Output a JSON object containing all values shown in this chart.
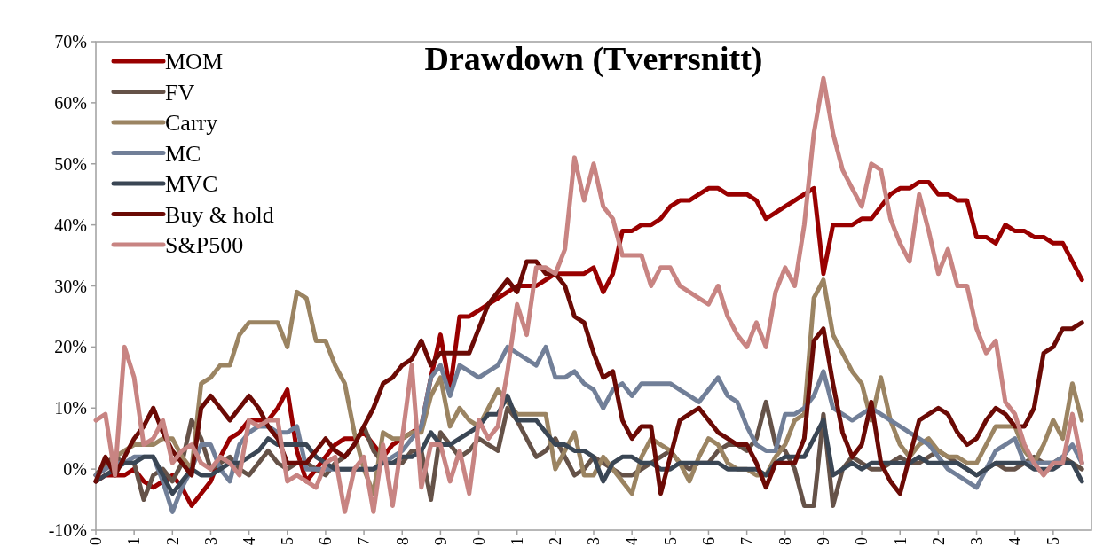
{
  "chart_data": {
    "type": "line",
    "title": "Drawdown (Tverrsnitt)",
    "legend": "top left",
    "grid": false,
    "line_style": "solid",
    "categories": [
      "0",
      null,
      null,
      null,
      "1",
      null,
      null,
      null,
      "2",
      null,
      null,
      null,
      "3",
      null,
      null,
      null,
      "4",
      null,
      null,
      null,
      "5",
      null,
      null,
      null,
      "6",
      null,
      null,
      null,
      "7",
      null,
      null,
      null,
      "8",
      null,
      null,
      null,
      "9",
      null,
      null,
      null,
      "0",
      null,
      null,
      null,
      "1",
      null,
      null,
      null,
      "2",
      null,
      null,
      null,
      "3",
      null,
      null,
      null,
      "4",
      null,
      null,
      null,
      "5",
      null,
      null,
      null,
      "6",
      null,
      null,
      null,
      "7",
      null,
      null,
      null,
      "8",
      null,
      null,
      null,
      "9",
      null,
      null,
      null,
      "0",
      null,
      null,
      null,
      "1",
      null,
      null,
      null,
      "2",
      null,
      null,
      null,
      "3",
      null,
      null,
      null,
      "4",
      null,
      null,
      null,
      "5",
      null,
      null,
      null
    ],
    "ylim": [
      -10,
      70
    ],
    "yticks": [
      {
        "value": -10,
        "label": "-10%"
      },
      {
        "value": 0,
        "label": "0%"
      },
      {
        "value": 10,
        "label": "10%"
      },
      {
        "value": 20,
        "label": "20%"
      },
      {
        "value": 30,
        "label": "30%"
      },
      {
        "value": 40,
        "label": "40%"
      },
      {
        "value": 50,
        "label": "50%"
      },
      {
        "value": 60,
        "label": "60%"
      },
      {
        "value": 70,
        "label": "70%"
      }
    ],
    "series": [
      {
        "name": "MOM",
        "color": "#990000",
        "values": [
          -2,
          -1,
          -1,
          -1,
          0,
          -2,
          -3,
          -2,
          -1,
          -3,
          -6,
          -4,
          -2,
          2,
          5,
          6,
          8,
          8,
          8,
          10,
          13,
          3,
          -2,
          0,
          2,
          4,
          5,
          5,
          6,
          4,
          2,
          4,
          5,
          6,
          7,
          15,
          22,
          13,
          25,
          25,
          26,
          27,
          28,
          29,
          30,
          30,
          30,
          31,
          32,
          32,
          32,
          32,
          33,
          29,
          32,
          39,
          39,
          40,
          40,
          41,
          43,
          44,
          44,
          45,
          46,
          46,
          45,
          45,
          45,
          44,
          41,
          42,
          43,
          44,
          45,
          46,
          32,
          40,
          40,
          40,
          41,
          41,
          43,
          45,
          46,
          46,
          47,
          47,
          45,
          45,
          44,
          44,
          38,
          38,
          37,
          40,
          39,
          39,
          38,
          38,
          37,
          37,
          34,
          31
        ]
      },
      {
        "name": "FV",
        "color": "#655248",
        "values": [
          -1,
          1,
          2,
          1,
          1,
          -5,
          -1,
          0,
          -2,
          1,
          8,
          5,
          0,
          1,
          2,
          0,
          -1,
          1,
          3,
          1,
          0,
          1,
          1,
          0,
          -1,
          1,
          2,
          4,
          7,
          3,
          1,
          1,
          1,
          3,
          3,
          -5,
          6,
          4,
          2,
          3,
          5,
          4,
          3,
          10,
          8,
          5,
          2,
          3,
          5,
          2,
          -1,
          0,
          2,
          1,
          0,
          -1,
          -1,
          0,
          1,
          2,
          3,
          1,
          0,
          1,
          1,
          3,
          4,
          4,
          3,
          5,
          11,
          4,
          3,
          0,
          -6,
          -6,
          9,
          -6,
          0,
          2,
          1,
          0,
          0,
          1,
          2,
          1,
          1,
          2,
          3,
          2,
          1,
          0,
          -1,
          0,
          1,
          0,
          0,
          1,
          2,
          1,
          1,
          2,
          1,
          0
        ]
      },
      {
        "name": "Carry",
        "color": "#9b8462",
        "values": [
          -1,
          0,
          2,
          3,
          4,
          4,
          4,
          5,
          5,
          2,
          0,
          14,
          15,
          17,
          17,
          22,
          24,
          24,
          24,
          24,
          20,
          29,
          28,
          21,
          21,
          17,
          14,
          6,
          0,
          -4,
          6,
          5,
          5,
          6,
          6,
          12,
          15,
          7,
          10,
          8,
          7,
          10,
          13,
          11,
          9,
          9,
          9,
          9,
          0,
          3,
          6,
          -1,
          -1,
          2,
          0,
          -2,
          -4,
          2,
          5,
          4,
          3,
          1,
          -2,
          2,
          5,
          4,
          1,
          0,
          0,
          -1,
          -1,
          2,
          4,
          8,
          9,
          28,
          31,
          22,
          19,
          16,
          14,
          8,
          15,
          8,
          4,
          2,
          4,
          5,
          3,
          2,
          2,
          1,
          1,
          4,
          7,
          7,
          7,
          3,
          1,
          4,
          8,
          5,
          14,
          8
        ]
      },
      {
        "name": "MC",
        "color": "#717f98",
        "values": [
          -1,
          0,
          1,
          1,
          2,
          2,
          2,
          -2,
          -7,
          -3,
          0,
          4,
          4,
          0,
          -2,
          4,
          6,
          7,
          7,
          6,
          6,
          7,
          0,
          0,
          0,
          0,
          0,
          0,
          0,
          0,
          1,
          2,
          3,
          5,
          7,
          15,
          17,
          12,
          17,
          16,
          15,
          16,
          17,
          20,
          19,
          18,
          17,
          20,
          15,
          15,
          16,
          14,
          13,
          10,
          13,
          14,
          12,
          14,
          14,
          14,
          14,
          13,
          12,
          11,
          13,
          15,
          12,
          11,
          7,
          4,
          3,
          3,
          9,
          9,
          10,
          12,
          16,
          10,
          9,
          8,
          9,
          10,
          9,
          8,
          7,
          6,
          5,
          4,
          2,
          0,
          -1,
          -2,
          -3,
          0,
          3,
          4,
          5,
          1,
          1,
          1,
          1,
          2,
          4,
          1
        ]
      },
      {
        "name": "MVC",
        "color": "#3a4654",
        "values": [
          -2,
          -1,
          0,
          1,
          1,
          2,
          2,
          -1,
          -4,
          -2,
          0,
          -1,
          -1,
          0,
          1,
          1,
          2,
          3,
          5,
          4,
          4,
          4,
          4,
          2,
          1,
          0,
          0,
          0,
          0,
          0,
          1,
          1,
          2,
          2,
          3,
          6,
          4,
          4,
          5,
          6,
          7,
          9,
          9,
          12,
          8,
          8,
          8,
          6,
          4,
          4,
          3,
          3,
          2,
          -2,
          1,
          2,
          2,
          1,
          1,
          0,
          0,
          1,
          1,
          1,
          1,
          1,
          0,
          0,
          0,
          0,
          -1,
          1,
          2,
          2,
          2,
          5,
          8,
          -1,
          0,
          1,
          0,
          1,
          1,
          1,
          1,
          1,
          2,
          1,
          1,
          1,
          1,
          0,
          -1,
          0,
          1,
          1,
          1,
          1,
          0,
          0,
          0,
          1,
          1,
          -2
        ]
      },
      {
        "name": "Buy & hold",
        "color": "#6b0a05",
        "values": [
          -2,
          2,
          -1,
          2,
          5,
          7,
          10,
          6,
          3,
          1,
          -1,
          10,
          12,
          10,
          8,
          10,
          12,
          10,
          7,
          5,
          1,
          1,
          1,
          3,
          5,
          3,
          2,
          4,
          7,
          10,
          14,
          15,
          17,
          18,
          21,
          17,
          19,
          19,
          19,
          19,
          23,
          27,
          29,
          31,
          29,
          34,
          34,
          32,
          32,
          30,
          25,
          24,
          19,
          15,
          16,
          8,
          5,
          7,
          7,
          -4,
          2,
          8,
          9,
          10,
          8,
          6,
          5,
          4,
          4,
          1,
          -3,
          1,
          1,
          1,
          5,
          21,
          23,
          14,
          6,
          2,
          4,
          11,
          1,
          -2,
          -4,
          2,
          8,
          9,
          10,
          9,
          6,
          4,
          5,
          8,
          10,
          9,
          7,
          7,
          10,
          19,
          20,
          23,
          23,
          24
        ]
      },
      {
        "name": "S&P500",
        "color": "#c88482",
        "values": [
          8,
          9,
          -1,
          20,
          15,
          4,
          5,
          8,
          1,
          3,
          4,
          1,
          0,
          2,
          1,
          -1,
          8,
          7,
          8,
          8,
          -2,
          -1,
          -2,
          -3,
          1,
          2,
          -7,
          0,
          2,
          -7,
          4,
          -6,
          5,
          17,
          -3,
          4,
          4,
          -2,
          3,
          -4,
          8,
          5,
          7,
          16,
          27,
          22,
          33,
          33,
          32,
          36,
          51,
          44,
          50,
          43,
          41,
          35,
          35,
          35,
          30,
          33,
          33,
          30,
          29,
          28,
          27,
          30,
          25,
          22,
          20,
          24,
          20,
          29,
          33,
          30,
          40,
          55,
          64,
          55,
          49,
          46,
          43,
          50,
          49,
          41,
          37,
          34,
          45,
          39,
          32,
          36,
          30,
          30,
          23,
          19,
          21,
          11,
          9,
          4,
          1,
          -1,
          1,
          1,
          9,
          1
        ]
      }
    ]
  }
}
